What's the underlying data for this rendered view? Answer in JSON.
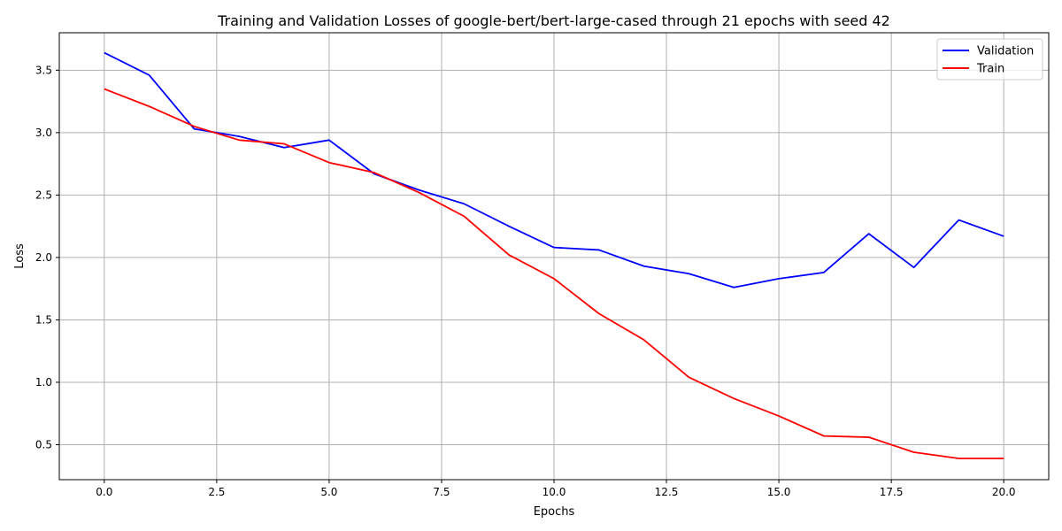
{
  "chart_data": {
    "type": "line",
    "title": "Training and Validation Losses of google-bert/bert-large-cased through 21 epochs with seed 42",
    "xlabel": "Epochs",
    "ylabel": "Loss",
    "xlim": [
      -1,
      21
    ],
    "ylim": [
      0.22,
      3.8
    ],
    "xticks": [
      0.0,
      2.5,
      5.0,
      7.5,
      10.0,
      12.5,
      15.0,
      17.5,
      20.0
    ],
    "xtick_labels": [
      "0.0",
      "2.5",
      "5.0",
      "7.5",
      "10.0",
      "12.5",
      "15.0",
      "17.5",
      "20.0"
    ],
    "yticks": [
      0.5,
      1.0,
      1.5,
      2.0,
      2.5,
      3.0,
      3.5
    ],
    "ytick_labels": [
      "0.5",
      "1.0",
      "1.5",
      "2.0",
      "2.5",
      "3.0",
      "3.5"
    ],
    "grid": true,
    "legend_position": "top-right",
    "x": [
      0,
      1,
      2,
      3,
      4,
      5,
      6,
      7,
      8,
      9,
      10,
      11,
      12,
      13,
      14,
      15,
      16,
      17,
      18,
      19,
      20
    ],
    "series": [
      {
        "name": "Validation",
        "color": "#0000ff",
        "values": [
          3.64,
          3.46,
          3.03,
          2.97,
          2.88,
          2.94,
          2.67,
          2.54,
          2.43,
          2.25,
          2.08,
          2.06,
          1.93,
          1.87,
          1.76,
          1.83,
          1.88,
          2.19,
          1.92,
          2.3,
          2.17
        ]
      },
      {
        "name": "Train",
        "color": "#ff0000",
        "values": [
          3.35,
          3.21,
          3.05,
          2.94,
          2.91,
          2.76,
          2.68,
          2.52,
          2.33,
          2.02,
          1.83,
          1.55,
          1.34,
          1.04,
          0.87,
          0.73,
          0.57,
          0.56,
          0.44,
          0.39,
          0.39
        ]
      }
    ]
  }
}
